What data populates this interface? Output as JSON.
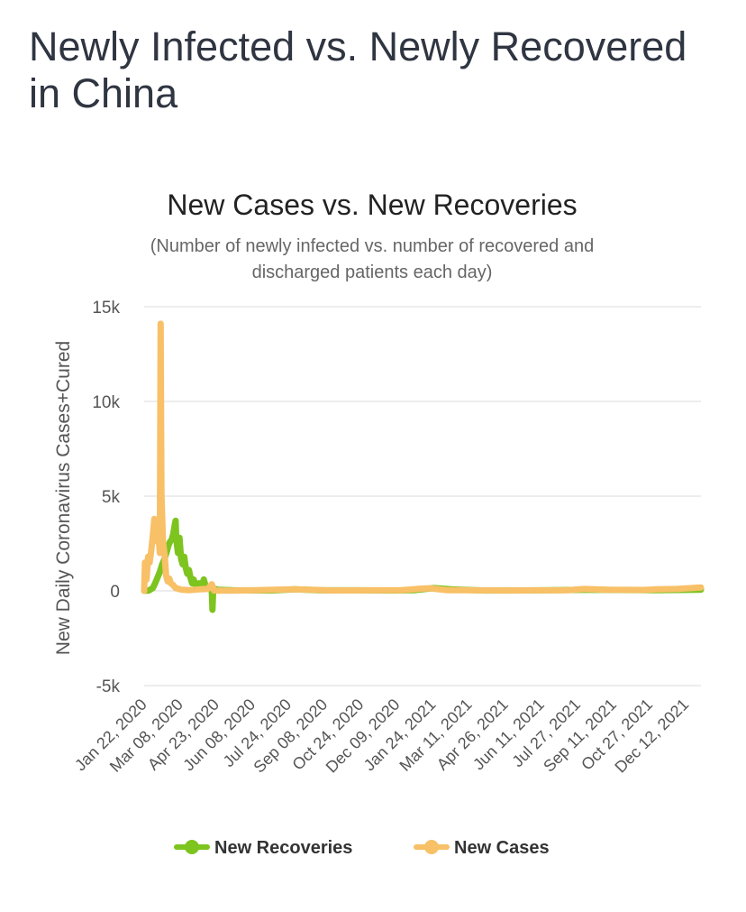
{
  "page": {
    "title": "Newly Infected vs. Newly Recovered in China"
  },
  "chart_data": {
    "type": "line",
    "title": "New Cases vs. New Recoveries",
    "subtitle_lines": [
      "(Number of newly infected vs. number of recovered and",
      "discharged patients each day)"
    ],
    "ylabel": "New Daily Coronavirus Cases+Cured",
    "xlabel": "",
    "ylim": [
      -5000,
      15000
    ],
    "y_ticks": [
      {
        "value": 15000,
        "label": "15k"
      },
      {
        "value": 10000,
        "label": "10k"
      },
      {
        "value": 5000,
        "label": "5k"
      },
      {
        "value": 0,
        "label": "0"
      },
      {
        "value": -5000,
        "label": "-5k"
      }
    ],
    "x_range": [
      "2020-01-22",
      "2021-12-31"
    ],
    "x_ticks": [
      {
        "date": "2020-01-22",
        "label": "Jan 22, 2020"
      },
      {
        "date": "2020-03-08",
        "label": "Mar 08, 2020"
      },
      {
        "date": "2020-04-23",
        "label": "Apr 23, 2020"
      },
      {
        "date": "2020-06-08",
        "label": "Jun 08, 2020"
      },
      {
        "date": "2020-07-24",
        "label": "Jul 24, 2020"
      },
      {
        "date": "2020-09-08",
        "label": "Sep 08, 2020"
      },
      {
        "date": "2020-10-24",
        "label": "Oct 24, 2020"
      },
      {
        "date": "2020-12-09",
        "label": "Dec 09, 2020"
      },
      {
        "date": "2021-01-24",
        "label": "Jan 24, 2021"
      },
      {
        "date": "2021-03-11",
        "label": "Mar 11, 2021"
      },
      {
        "date": "2021-04-26",
        "label": "Apr 26, 2021"
      },
      {
        "date": "2021-06-11",
        "label": "Jun 11, 2021"
      },
      {
        "date": "2021-07-27",
        "label": "Jul 27, 2021"
      },
      {
        "date": "2021-09-11",
        "label": "Sep 11, 2021"
      },
      {
        "date": "2021-10-27",
        "label": "Oct 27, 2021"
      },
      {
        "date": "2021-12-12",
        "label": "Dec 12, 2021"
      }
    ],
    "grid": true,
    "legend_position": "bottom",
    "series": [
      {
        "name": "New Recoveries",
        "color": "#7dc41f",
        "points": [
          [
            "2020-01-22",
            0
          ],
          [
            "2020-01-28",
            20
          ],
          [
            "2020-02-02",
            150
          ],
          [
            "2020-02-05",
            400
          ],
          [
            "2020-02-08",
            700
          ],
          [
            "2020-02-11",
            1000
          ],
          [
            "2020-02-14",
            1400
          ],
          [
            "2020-02-17",
            1700
          ],
          [
            "2020-02-20",
            2100
          ],
          [
            "2020-02-22",
            2400
          ],
          [
            "2020-02-24",
            2600
          ],
          [
            "2020-02-26",
            2700
          ],
          [
            "2020-02-28",
            3000
          ],
          [
            "2020-03-01",
            3500
          ],
          [
            "2020-03-02",
            3700
          ],
          [
            "2020-03-03",
            2700
          ],
          [
            "2020-03-05",
            2000
          ],
          [
            "2020-03-07",
            2800
          ],
          [
            "2020-03-09",
            1700
          ],
          [
            "2020-03-11",
            1400
          ],
          [
            "2020-03-13",
            1800
          ],
          [
            "2020-03-15",
            1200
          ],
          [
            "2020-03-17",
            900
          ],
          [
            "2020-03-19",
            1100
          ],
          [
            "2020-03-21",
            700
          ],
          [
            "2020-03-23",
            400
          ],
          [
            "2020-03-25",
            600
          ],
          [
            "2020-03-28",
            300
          ],
          [
            "2020-04-01",
            400
          ],
          [
            "2020-04-04",
            200
          ],
          [
            "2020-04-07",
            600
          ],
          [
            "2020-04-10",
            150
          ],
          [
            "2020-04-14",
            100
          ],
          [
            "2020-04-17",
            80
          ],
          [
            "2020-04-18",
            -1000
          ],
          [
            "2020-04-19",
            120
          ],
          [
            "2020-04-25",
            60
          ],
          [
            "2020-05-15",
            30
          ],
          [
            "2020-07-01",
            20
          ],
          [
            "2020-08-01",
            80
          ],
          [
            "2020-09-01",
            30
          ],
          [
            "2020-10-15",
            30
          ],
          [
            "2020-12-01",
            20
          ],
          [
            "2021-01-01",
            40
          ],
          [
            "2021-01-25",
            150
          ],
          [
            "2021-02-15",
            80
          ],
          [
            "2021-04-01",
            20
          ],
          [
            "2021-06-01",
            25
          ],
          [
            "2021-08-15",
            60
          ],
          [
            "2021-09-15",
            50
          ],
          [
            "2021-11-01",
            40
          ],
          [
            "2021-12-31",
            60
          ]
        ]
      },
      {
        "name": "New Cases",
        "color": "#f8c067",
        "points": [
          [
            "2020-01-22",
            0
          ],
          [
            "2020-01-23",
            1500
          ],
          [
            "2020-01-25",
            600
          ],
          [
            "2020-01-27",
            1800
          ],
          [
            "2020-01-29",
            1500
          ],
          [
            "2020-01-31",
            2100
          ],
          [
            "2020-02-02",
            2900
          ],
          [
            "2020-02-04",
            3800
          ],
          [
            "2020-02-06",
            3100
          ],
          [
            "2020-02-08",
            2600
          ],
          [
            "2020-02-10",
            2500
          ],
          [
            "2020-02-11",
            2000
          ],
          [
            "2020-02-12",
            14100
          ],
          [
            "2020-02-13",
            5100
          ],
          [
            "2020-02-15",
            2600
          ],
          [
            "2020-02-17",
            1900
          ],
          [
            "2020-02-19",
            800
          ],
          [
            "2020-02-21",
            500
          ],
          [
            "2020-02-23",
            650
          ],
          [
            "2020-02-25",
            400
          ],
          [
            "2020-02-28",
            300
          ],
          [
            "2020-03-02",
            150
          ],
          [
            "2020-03-10",
            60
          ],
          [
            "2020-03-20",
            40
          ],
          [
            "2020-04-01",
            80
          ],
          [
            "2020-04-12",
            100
          ],
          [
            "2020-04-17",
            350
          ],
          [
            "2020-04-20",
            20
          ],
          [
            "2020-05-10",
            15
          ],
          [
            "2020-06-15",
            40
          ],
          [
            "2020-07-30",
            80
          ],
          [
            "2020-08-20",
            60
          ],
          [
            "2020-09-20",
            20
          ],
          [
            "2020-11-01",
            30
          ],
          [
            "2020-12-15",
            40
          ],
          [
            "2021-01-10",
            120
          ],
          [
            "2021-01-20",
            140
          ],
          [
            "2021-02-10",
            40
          ],
          [
            "2021-05-01",
            20
          ],
          [
            "2021-06-01",
            30
          ],
          [
            "2021-07-15",
            40
          ],
          [
            "2021-08-05",
            100
          ],
          [
            "2021-09-01",
            60
          ],
          [
            "2021-10-20",
            50
          ],
          [
            "2021-11-05",
            80
          ],
          [
            "2021-12-01",
            100
          ],
          [
            "2021-12-31",
            180
          ]
        ]
      }
    ]
  }
}
